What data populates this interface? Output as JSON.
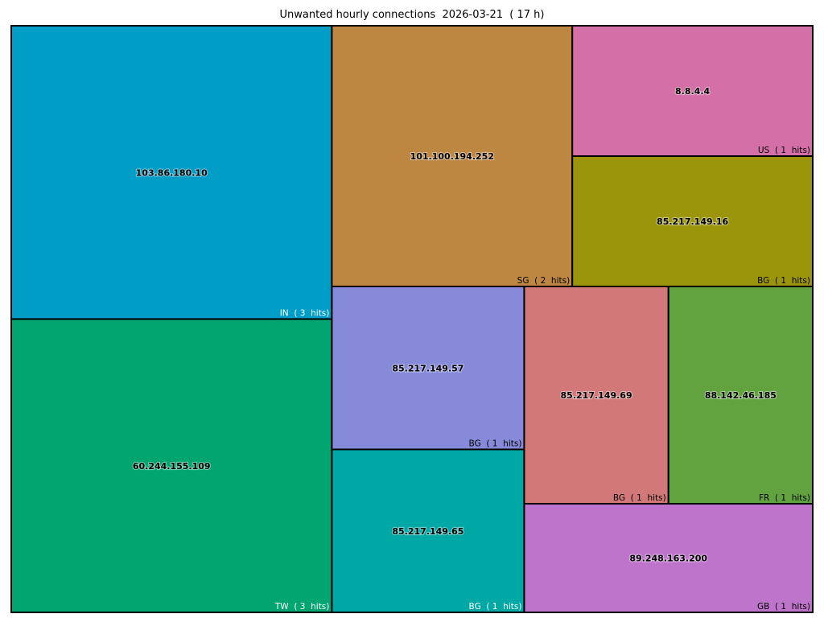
{
  "chart_data": {
    "type": "treemap",
    "title": "Unwanted hourly connections  2026-03-21  ( 17 h)",
    "cells": [
      {
        "ip": "103.86.180.10",
        "country": "IN",
        "hits": 3,
        "label": "IN  ( 3  hits)",
        "color": "#009dc6",
        "label_color": "#ffffff"
      },
      {
        "ip": "60.244.155.109",
        "country": "TW",
        "hits": 3,
        "label": "TW  ( 3  hits)",
        "color": "#00a570",
        "label_color": "#ffffff"
      },
      {
        "ip": "101.100.194.252",
        "country": "SG",
        "hits": 2,
        "label": "SG  ( 2  hits)",
        "color": "#bd8741",
        "label_color": "#000000"
      },
      {
        "ip": "8.8.4.4",
        "country": "US",
        "hits": 1,
        "label": "US  ( 1  hits)",
        "color": "#d46fa8",
        "label_color": "#000000"
      },
      {
        "ip": "85.217.149.16",
        "country": "BG",
        "hits": 1,
        "label": "BG  ( 1  hits)",
        "color": "#9b950c",
        "label_color": "#000000"
      },
      {
        "ip": "85.217.149.57",
        "country": "BG",
        "hits": 1,
        "label": "BG  ( 1  hits)",
        "color": "#868ad9",
        "label_color": "#000000"
      },
      {
        "ip": "85.217.149.65",
        "country": "BG",
        "hits": 1,
        "label": "BG  ( 1  hits)",
        "color": "#00a8a5",
        "label_color": "#ffffff"
      },
      {
        "ip": "85.217.149.69",
        "country": "BG",
        "hits": 1,
        "label": "BG  ( 1  hits)",
        "color": "#d37878",
        "label_color": "#000000"
      },
      {
        "ip": "88.142.46.185",
        "country": "FR",
        "hits": 1,
        "label": "FR  ( 1  hits)",
        "color": "#62a23f",
        "label_color": "#000000"
      },
      {
        "ip": "89.248.163.200",
        "country": "GB",
        "hits": 1,
        "label": "GB  ( 1  hits)",
        "color": "#bf74cc",
        "label_color": "#000000"
      }
    ]
  }
}
